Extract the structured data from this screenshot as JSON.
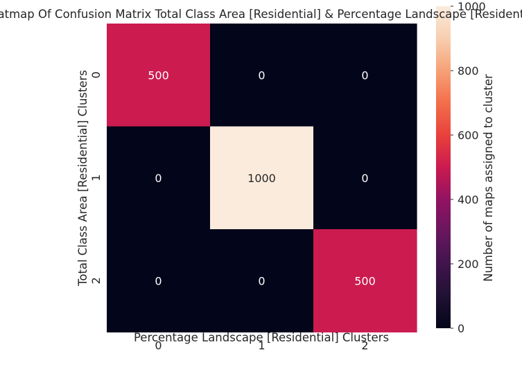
{
  "chart_data": {
    "type": "heatmap",
    "title": "Heatmap Of Confusion Matrix Total Class Area [Residential] & Percentage Landscape [Residential]",
    "xlabel": "Percentage Landscape [Residential] Clusters",
    "ylabel": "Total Class Area [Residential] Clusters",
    "x_categories": [
      "0",
      "1",
      "2"
    ],
    "y_categories": [
      "0",
      "1",
      "2"
    ],
    "values": [
      [
        500,
        0,
        0
      ],
      [
        0,
        1000,
        0
      ],
      [
        0,
        0,
        500
      ]
    ],
    "colorbar": {
      "label": "Number of maps assigned to cluster",
      "ticks": [
        0,
        200,
        400,
        600,
        800,
        1000
      ],
      "range": [
        0,
        1000
      ],
      "colormap": "rocket"
    }
  }
}
